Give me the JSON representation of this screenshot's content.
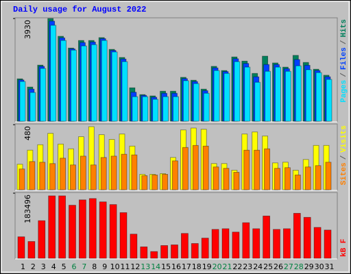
{
  "chart_data": [
    {
      "type": "bar",
      "title": "Daily usage for August 2022",
      "categories": [
        "1",
        "2",
        "3",
        "4",
        "5",
        "6",
        "7",
        "8",
        "9",
        "10",
        "11",
        "12",
        "13",
        "14",
        "15",
        "16",
        "17",
        "18",
        "19",
        "20",
        "21",
        "22",
        "23",
        "24",
        "25",
        "26",
        "27",
        "28",
        "29",
        "30",
        "31"
      ],
      "category_colors": [
        "#000000",
        "#000000",
        "#000000",
        "#000000",
        "#000000",
        "#008040",
        "#008040",
        "#000000",
        "#000000",
        "#000000",
        "#000000",
        "#000000",
        "#008040",
        "#008040",
        "#000000",
        "#000000",
        "#000000",
        "#000000",
        "#000000",
        "#008040",
        "#008040",
        "#000000",
        "#000000",
        "#000000",
        "#000000",
        "#000000",
        "#008040",
        "#008040",
        "#000000",
        "#000000",
        "#000000"
      ],
      "legend_separator": "/",
      "ylim": [
        0,
        3930
      ],
      "yticks": [
        3930
      ],
      "series": [
        {
          "name": "Hits",
          "color": "#00805c",
          "values": [
            1624,
            1310,
            2148,
            3930,
            3250,
            2800,
            3090,
            3090,
            3200,
            2750,
            2440,
            1280,
            1020,
            970,
            1150,
            1150,
            1680,
            1570,
            1230,
            2100,
            1940,
            2460,
            2300,
            1830,
            2490,
            2230,
            2070,
            2520,
            2250,
            1990,
            1760
          ]
        },
        {
          "name": "Files",
          "color": "#0040ff",
          "values": [
            1580,
            1230,
            2100,
            3830,
            3190,
            2770,
            3010,
            3030,
            3160,
            2710,
            2380,
            1110,
            990,
            920,
            1070,
            1070,
            1630,
            1520,
            1170,
            2040,
            1900,
            2390,
            2210,
            1700,
            2170,
            2170,
            2010,
            2360,
            2140,
            1940,
            1700
          ]
        },
        {
          "name": "Pages",
          "color": "#00e0ff",
          "values": [
            1520,
            1100,
            2020,
            3670,
            3090,
            2720,
            2880,
            2930,
            3090,
            2650,
            2280,
            940,
            940,
            840,
            940,
            940,
            1550,
            1440,
            1070,
            1940,
            1830,
            2280,
            2070,
            1490,
            1910,
            2070,
            1910,
            2120,
            1970,
            1860,
            1600
          ]
        }
      ]
    },
    {
      "type": "bar",
      "ylim": [
        0,
        480
      ],
      "yticks": [
        480
      ],
      "series": [
        {
          "name": "Visits",
          "color": "#ffff00",
          "values": [
            188,
            292,
            332,
            416,
            337,
            302,
            391,
            465,
            406,
            371,
            411,
            322,
            114,
            114,
            119,
            238,
            441,
            455,
            446,
            193,
            193,
            144,
            411,
            426,
            396,
            198,
            203,
            144,
            223,
            327,
            327
          ]
        },
        {
          "name": "Sites",
          "color": "#ff8000",
          "values": [
            153,
            208,
            203,
            193,
            233,
            183,
            248,
            183,
            238,
            248,
            262,
            257,
            104,
            109,
            114,
            213,
            312,
            327,
            322,
            168,
            158,
            129,
            292,
            292,
            302,
            158,
            163,
            109,
            168,
            178,
            203
          ]
        }
      ]
    },
    {
      "type": "bar",
      "ylim": [
        0,
        183496
      ],
      "yticks": [
        183496
      ],
      "series": [
        {
          "name": "kB F",
          "color": "#ff0000",
          "values": [
            60500,
            47300,
            106000,
            176000,
            176000,
            149500,
            164600,
            168400,
            159000,
            151400,
            128700,
            68100,
            32200,
            18900,
            35900,
            37800,
            70000,
            41600,
            56800,
            81400,
            83300,
            73800,
            100300,
            83300,
            119200,
            81400,
            83300,
            126800,
            115400,
            87000,
            79500
          ]
        }
      ]
    }
  ]
}
